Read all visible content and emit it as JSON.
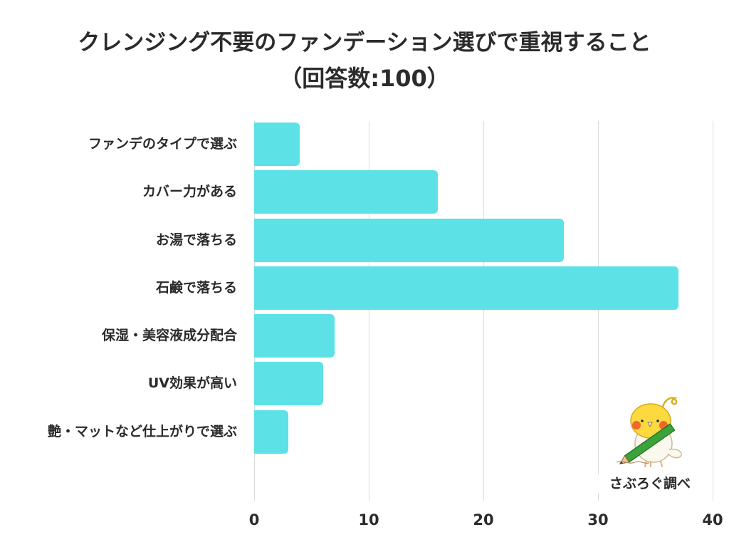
{
  "chart_data": {
    "type": "bar",
    "orientation": "horizontal",
    "title": "クレンジング不要のファンデーション選びで重視すること",
    "subtitle": "（回答数:100）",
    "categories": [
      "ファンデのタイプで選ぶ",
      "カバー力がある",
      "お湯で落ちる",
      "石鹸で落ちる",
      "保湿・美容液成分配合",
      "UV効果が高い",
      "艶・マットなど仕上がりで選ぶ"
    ],
    "values": [
      4,
      16,
      27,
      37,
      7,
      6,
      3
    ],
    "xlabel": "",
    "ylabel": "",
    "xlim": [
      0,
      40
    ],
    "xticks": [
      "0",
      "10",
      "20",
      "30",
      "40"
    ],
    "grid": "vertical",
    "legend": null,
    "bar_color": "#5ce1e6",
    "annotation": "さぶろぐ調べ"
  },
  "header": {
    "title_line1": "クレンジング不要のファンデーション選びで重視すること",
    "title_line2": "（回答数:100）"
  },
  "axis": {
    "ticks": [
      "0",
      "10",
      "20",
      "30",
      "40"
    ]
  },
  "credit": {
    "text": "さぶろぐ調べ",
    "mascot_icon": "cockatiel-with-pencil-icon"
  },
  "colors": {
    "bar": "#5ce1e6",
    "text": "#2b2b2b",
    "grid": "#dcdcdc",
    "background": "#ffffff"
  }
}
